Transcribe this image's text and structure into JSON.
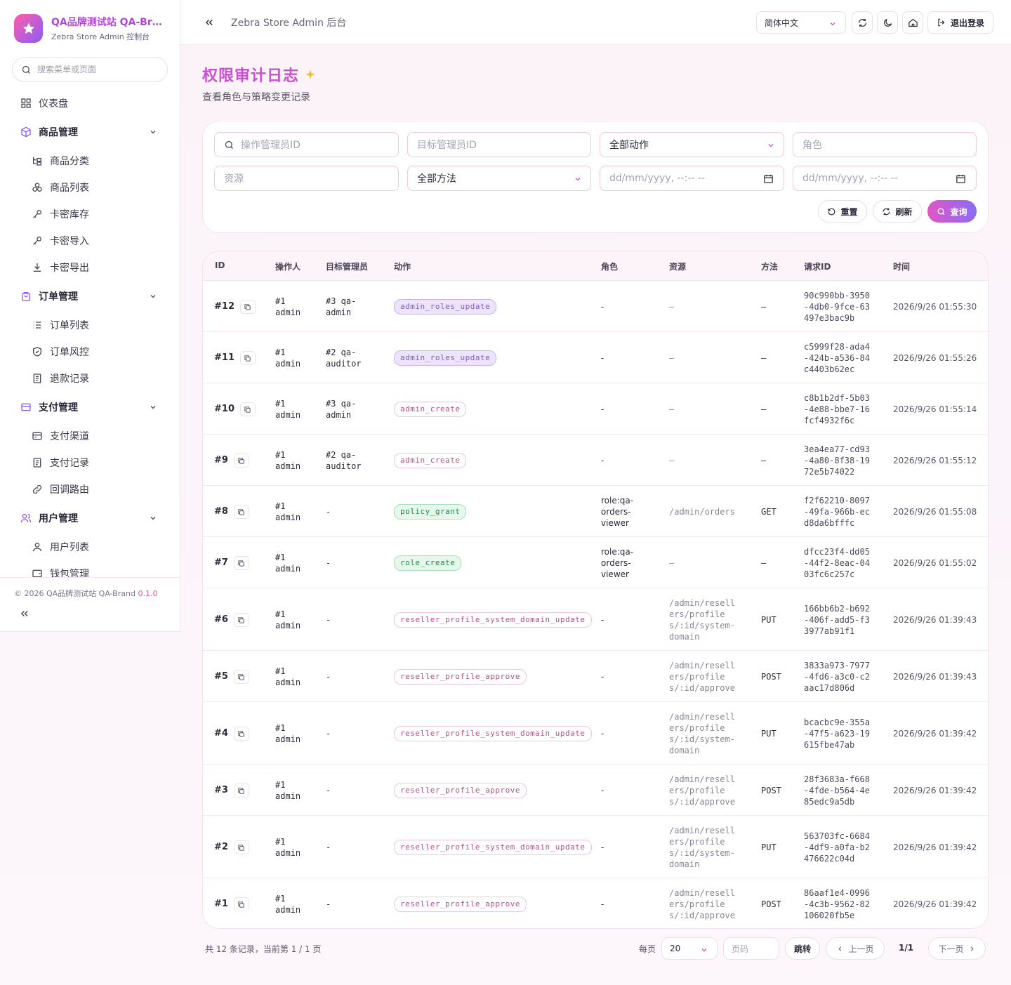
{
  "brand": {
    "title": "QA品牌测试站 QA-Brand",
    "subtitle": "Zebra Store Admin 控制台"
  },
  "sidebar": {
    "search_placeholder": "搜索菜单或页面",
    "dashboard": "仪表盘",
    "groups": [
      {
        "label": "商品管理",
        "items": [
          "商品分类",
          "商品列表",
          "卡密库存",
          "卡密导入",
          "卡密导出"
        ]
      },
      {
        "label": "订单管理",
        "items": [
          "订单列表",
          "订单风控",
          "退款记录"
        ]
      },
      {
        "label": "支付管理",
        "items": [
          "支付渠道",
          "支付记录",
          "回调路由"
        ]
      },
      {
        "label": "用户管理",
        "items": [
          "用户列表",
          "钱包管理"
        ]
      }
    ],
    "footer_text": "© 2026 QA品牌测试站 QA-Brand",
    "version": "0.1.0"
  },
  "header": {
    "title": "Zebra Store Admin 后台",
    "language": "简体中文",
    "logout": "退出登录"
  },
  "page": {
    "title": "权限审计日志",
    "subtitle": "查看角色与策略变更记录"
  },
  "filters": {
    "actor_placeholder": "操作管理员ID",
    "target_placeholder": "目标管理员ID",
    "action_value": "全部动作",
    "role_placeholder": "角色",
    "resource_placeholder": "资源",
    "method_value": "全部方法",
    "date_from_placeholder": "dd/mm/yyyy, --:-- --",
    "date_to_placeholder": "dd/mm/yyyy, --:-- --",
    "reset": "重置",
    "refresh": "刷新",
    "query": "查询"
  },
  "table": {
    "columns": [
      "ID",
      "操作人",
      "目标管理员",
      "动作",
      "角色",
      "资源",
      "方法",
      "请求ID",
      "时间"
    ],
    "rows": [
      {
        "id": "#12",
        "actor": [
          "#1",
          "admin"
        ],
        "target": [
          "#3 qa-",
          "admin"
        ],
        "action": "admin_roles_update",
        "style": "purple",
        "role": [
          "-"
        ],
        "resource": [
          "–"
        ],
        "method": "–",
        "req": [
          "90c990bb-3950",
          "-4db0-9fce-63",
          "497e3bac9b"
        ],
        "time": "2026/9/26 01:55:30"
      },
      {
        "id": "#11",
        "actor": [
          "#1",
          "admin"
        ],
        "target": [
          "#2 qa-",
          "auditor"
        ],
        "action": "admin_roles_update",
        "style": "purple",
        "role": [
          "-"
        ],
        "resource": [
          "–"
        ],
        "method": "–",
        "req": [
          "c5999f28-ada4",
          "-424b-a536-84",
          "c4403b62ec"
        ],
        "time": "2026/9/26 01:55:26"
      },
      {
        "id": "#10",
        "actor": [
          "#1",
          "admin"
        ],
        "target": [
          "#3 qa-",
          "admin"
        ],
        "action": "admin_create",
        "style": "pink",
        "role": [
          "-"
        ],
        "resource": [
          "–"
        ],
        "method": "–",
        "req": [
          "c8b1b2df-5b03",
          "-4e88-bbe7-16",
          "fcf4932f6c"
        ],
        "time": "2026/9/26 01:55:14"
      },
      {
        "id": "#9",
        "actor": [
          "#1",
          "admin"
        ],
        "target": [
          "#2 qa-",
          "auditor"
        ],
        "action": "admin_create",
        "style": "pink",
        "role": [
          "-"
        ],
        "resource": [
          "–"
        ],
        "method": "–",
        "req": [
          "3ea4ea77-cd93",
          "-4a80-8f38-19",
          "72e5b74022"
        ],
        "time": "2026/9/26 01:55:12"
      },
      {
        "id": "#8",
        "actor": [
          "#1",
          "admin"
        ],
        "target": [
          "-"
        ],
        "action": "policy_grant",
        "style": "green",
        "role": [
          "role:qa-",
          "orders-",
          "viewer"
        ],
        "resource": [
          "/admin/orders"
        ],
        "method": "GET",
        "req": [
          "f2f62210-8097",
          "-49fa-966b-ec",
          "d8da6bfffc"
        ],
        "time": "2026/9/26 01:55:08"
      },
      {
        "id": "#7",
        "actor": [
          "#1",
          "admin"
        ],
        "target": [
          "-"
        ],
        "action": "role_create",
        "style": "green",
        "role": [
          "role:qa-",
          "orders-",
          "viewer"
        ],
        "resource": [
          "–"
        ],
        "method": "–",
        "req": [
          "dfcc23f4-dd05",
          "-44f2-8eac-04",
          "03fc6c257c"
        ],
        "time": "2026/9/26 01:55:02"
      },
      {
        "id": "#6",
        "actor": [
          "#1",
          "admin"
        ],
        "target": [
          "-"
        ],
        "action": "reseller_profile_system_domain_update",
        "style": "pink",
        "role": [
          "-"
        ],
        "resource": [
          "/admin/resell",
          "ers/profile",
          "s/:id/system-",
          "domain"
        ],
        "method": "PUT",
        "req": [
          "166bb6b2-b692",
          "-406f-add5-f3",
          "3977ab91f1"
        ],
        "time": "2026/9/26 01:39:43"
      },
      {
        "id": "#5",
        "actor": [
          "#1",
          "admin"
        ],
        "target": [
          "-"
        ],
        "action": "reseller_profile_approve",
        "style": "pink",
        "role": [
          "-"
        ],
        "resource": [
          "/admin/resell",
          "ers/profile",
          "s/:id/approve"
        ],
        "method": "POST",
        "req": [
          "3833a973-7977",
          "-4fd6-a3c0-c2",
          "aac17d806d"
        ],
        "time": "2026/9/26 01:39:43"
      },
      {
        "id": "#4",
        "actor": [
          "#1",
          "admin"
        ],
        "target": [
          "-"
        ],
        "action": "reseller_profile_system_domain_update",
        "style": "pink",
        "role": [
          "-"
        ],
        "resource": [
          "/admin/resell",
          "ers/profile",
          "s/:id/system-",
          "domain"
        ],
        "method": "PUT",
        "req": [
          "bcacbc9e-355a",
          "-47f5-a623-19",
          "615fbe47ab"
        ],
        "time": "2026/9/26 01:39:42"
      },
      {
        "id": "#3",
        "actor": [
          "#1",
          "admin"
        ],
        "target": [
          "-"
        ],
        "action": "reseller_profile_approve",
        "style": "pink",
        "role": [
          "-"
        ],
        "resource": [
          "/admin/resell",
          "ers/profile",
          "s/:id/approve"
        ],
        "method": "POST",
        "req": [
          "28f3683a-f668",
          "-4fde-b564-4e",
          "85edc9a5db"
        ],
        "time": "2026/9/26 01:39:42"
      },
      {
        "id": "#2",
        "actor": [
          "#1",
          "admin"
        ],
        "target": [
          "-"
        ],
        "action": "reseller_profile_system_domain_update",
        "style": "pink",
        "role": [
          "-"
        ],
        "resource": [
          "/admin/resell",
          "ers/profile",
          "s/:id/system-",
          "domain"
        ],
        "method": "PUT",
        "req": [
          "563703fc-6684",
          "-4df9-a0fa-b2",
          "476622c04d"
        ],
        "time": "2026/9/26 01:39:42"
      },
      {
        "id": "#1",
        "actor": [
          "#1",
          "admin"
        ],
        "target": [
          "-"
        ],
        "action": "reseller_profile_approve",
        "style": "pink",
        "role": [
          "-"
        ],
        "resource": [
          "/admin/resell",
          "ers/profile",
          "s/:id/approve"
        ],
        "method": "POST",
        "req": [
          "86aaf1e4-0996",
          "-4c3b-9562-82",
          "106020fb5e"
        ],
        "time": "2026/9/26 01:39:42"
      }
    ]
  },
  "pagination": {
    "summary": "共 12 条记录，当前第 1 / 1 页",
    "per_page_label": "每页",
    "per_page": "20",
    "page_placeholder": "页码",
    "jump": "跳转",
    "prev": "上一页",
    "current": "1/1",
    "next": "下一页"
  },
  "colors": {
    "accent": "#c84fcf",
    "primary_gradient_start": "#e056c2",
    "primary_gradient_end": "#8b6cf6"
  }
}
